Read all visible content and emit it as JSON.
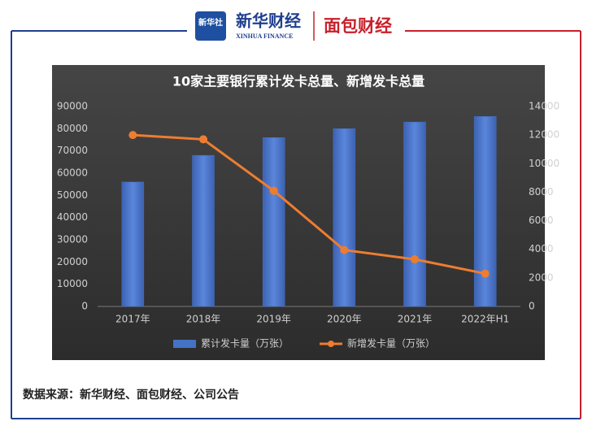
{
  "header": {
    "brand": "新华财经",
    "brand_en": "XINHUA FINANCE",
    "icon": "新华社",
    "partner": "面包财经"
  },
  "footer": {
    "source": "数据来源：新华财经、面包财经、公司公告"
  },
  "chart_data": {
    "type": "bar",
    "title": "10家主要银行累计发卡总量、新增发卡总量",
    "categories": [
      "2017年",
      "2018年",
      "2019年",
      "2020年",
      "2021年",
      "2022年H1"
    ],
    "series": [
      {
        "name": "累计发卡量（万张）",
        "color": "#4472c4",
        "type": "bar",
        "values": [
          56000,
          68000,
          76000,
          80000,
          83000,
          85500
        ]
      },
      {
        "name": "新增发卡量（万张）",
        "color": "#ed7d31",
        "type": "line",
        "axis": "y2",
        "values": [
          12000,
          11700,
          8100,
          3950,
          3300,
          2300
        ]
      }
    ],
    "ylim": [
      0,
      90000
    ],
    "yticks": [
      0,
      10000,
      20000,
      30000,
      40000,
      50000,
      60000,
      70000,
      80000,
      90000
    ],
    "y2lim": [
      0,
      14000
    ],
    "y2ticks": [
      0,
      2000,
      4000,
      6000,
      8000,
      10000,
      12000,
      14000
    ],
    "legend": "bottom",
    "grid": false
  }
}
